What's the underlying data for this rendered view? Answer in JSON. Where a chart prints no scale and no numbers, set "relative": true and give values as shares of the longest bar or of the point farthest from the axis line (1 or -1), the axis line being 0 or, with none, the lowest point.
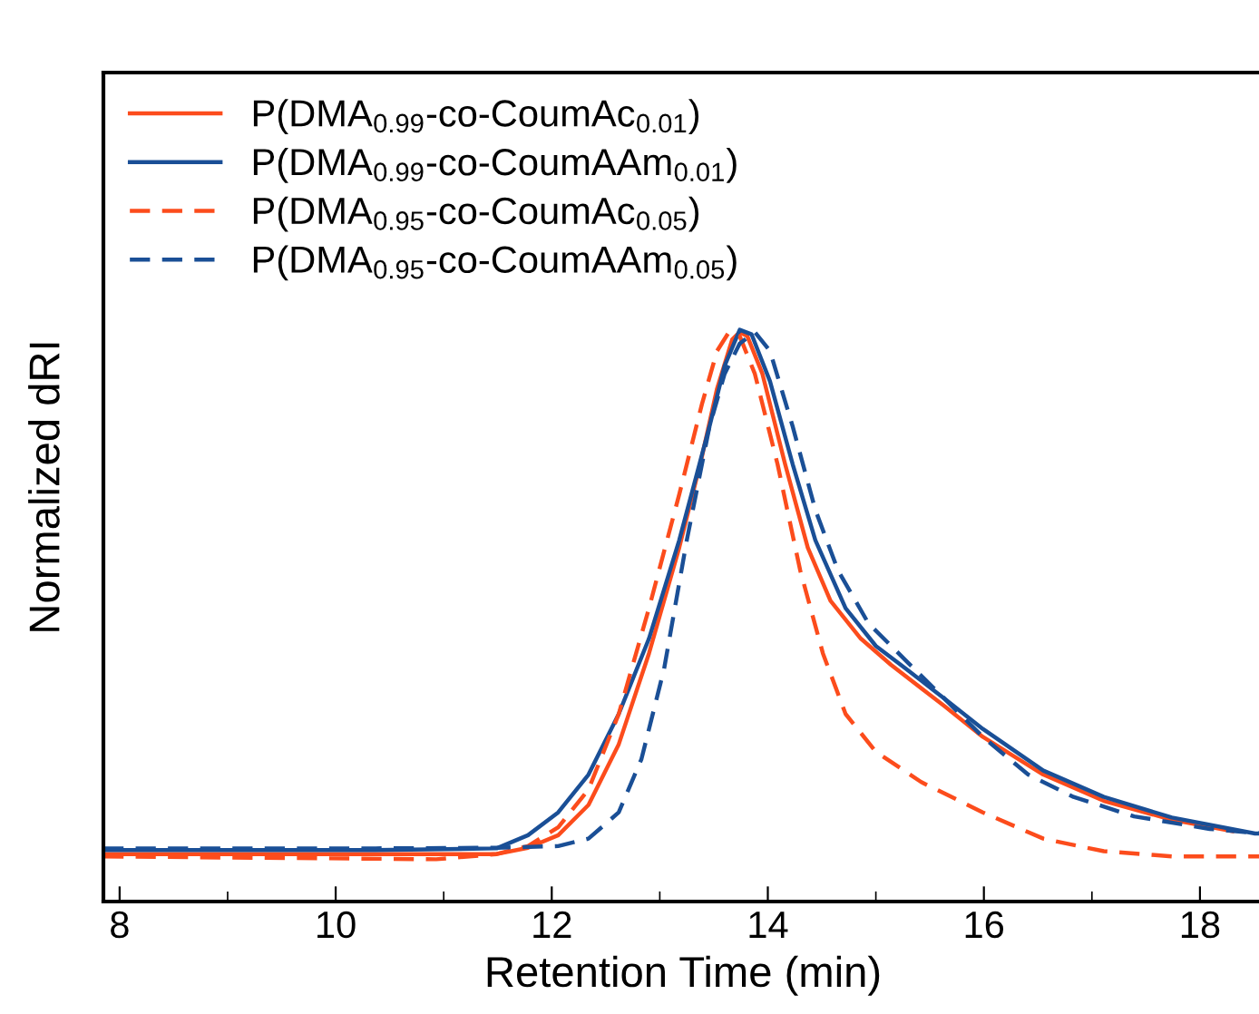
{
  "chart_data": {
    "type": "line",
    "xlabel": "Retention Time (min)",
    "ylabel": "Normalized dRI",
    "relative": true,
    "xlim": [
      7.85,
      18.58
    ],
    "xticks": [
      8,
      10,
      12,
      14,
      16,
      18
    ],
    "grid": false,
    "legend": "top left",
    "marker": "none",
    "series": [
      {
        "name": "P(DMA$_{0.99}$-co-CoumAc$_{0.01}$)",
        "color": "#fc4c1c",
        "line_style": "solid",
        "x": [
          7.85,
          10.37,
          11.49,
          11.78,
          12.06,
          12.34,
          12.62,
          12.9,
          13.18,
          13.39,
          13.53,
          13.67,
          13.74,
          13.81,
          13.95,
          14.16,
          14.37,
          14.58,
          14.86,
          15.14,
          15.64,
          15.99,
          16.55,
          17.11,
          17.74,
          18.3
        ],
        "values": [
          0.083,
          0.083,
          0.083,
          0.094,
          0.116,
          0.169,
          0.275,
          0.434,
          0.619,
          0.778,
          0.897,
          0.983,
          0.996,
          0.989,
          0.923,
          0.765,
          0.619,
          0.526,
          0.46,
          0.414,
          0.341,
          0.288,
          0.222,
          0.176,
          0.143,
          0.123
        ]
      },
      {
        "name": "P(DMA$_{0.99}$-co-CoumAAm$_{0.01}$)",
        "color": "#1a4f96",
        "line_style": "solid",
        "x": [
          7.85,
          10.37,
          11.49,
          11.78,
          12.06,
          12.34,
          12.62,
          12.9,
          13.18,
          13.46,
          13.6,
          13.74,
          13.85,
          14.02,
          14.23,
          14.44,
          14.72,
          15.0,
          15.28,
          15.64,
          15.99,
          16.55,
          17.11,
          17.74,
          18.51,
          18.58
        ],
        "values": [
          0.09,
          0.09,
          0.093,
          0.116,
          0.156,
          0.222,
          0.328,
          0.46,
          0.632,
          0.831,
          0.937,
          1.0,
          0.992,
          0.91,
          0.765,
          0.632,
          0.513,
          0.447,
          0.407,
          0.354,
          0.302,
          0.229,
          0.183,
          0.147,
          0.119,
          0.119
        ]
      },
      {
        "name": "P(DMA$_{0.95}$-co-CoumAc$_{0.05}$)",
        "color": "#fc4c1c",
        "line_style": "dashed",
        "x": [
          7.85,
          8.97,
          10.93,
          11.49,
          11.78,
          12.06,
          12.34,
          12.62,
          12.9,
          13.18,
          13.39,
          13.53,
          13.64,
          13.74,
          13.88,
          14.09,
          14.3,
          14.51,
          14.72,
          15.0,
          15.42,
          15.99,
          16.55,
          17.11,
          17.74,
          18.58
        ],
        "values": [
          0.079,
          0.077,
          0.074,
          0.083,
          0.097,
          0.13,
          0.196,
          0.328,
          0.513,
          0.712,
          0.87,
          0.963,
          0.996,
          0.989,
          0.923,
          0.765,
          0.579,
          0.434,
          0.328,
          0.262,
          0.209,
          0.156,
          0.11,
          0.088,
          0.079,
          0.079
        ]
      },
      {
        "name": "P(DMA$_{0.95}$-co-CoumAAm$_{0.05}$)",
        "color": "#1a4f96",
        "line_style": "dashed",
        "x": [
          7.85,
          10.37,
          11.49,
          12.06,
          12.34,
          12.62,
          12.83,
          13.04,
          13.25,
          13.46,
          13.6,
          13.74,
          13.88,
          14.02,
          14.23,
          14.44,
          14.65,
          14.93,
          15.28,
          15.64,
          15.99,
          16.41,
          16.83,
          17.39,
          18.09,
          18.58
        ],
        "values": [
          0.093,
          0.093,
          0.094,
          0.097,
          0.11,
          0.156,
          0.249,
          0.407,
          0.632,
          0.831,
          0.923,
          0.976,
          0.996,
          0.963,
          0.831,
          0.685,
          0.579,
          0.487,
          0.421,
          0.354,
          0.288,
          0.222,
          0.183,
          0.149,
          0.127,
          0.119
        ]
      }
    ]
  }
}
